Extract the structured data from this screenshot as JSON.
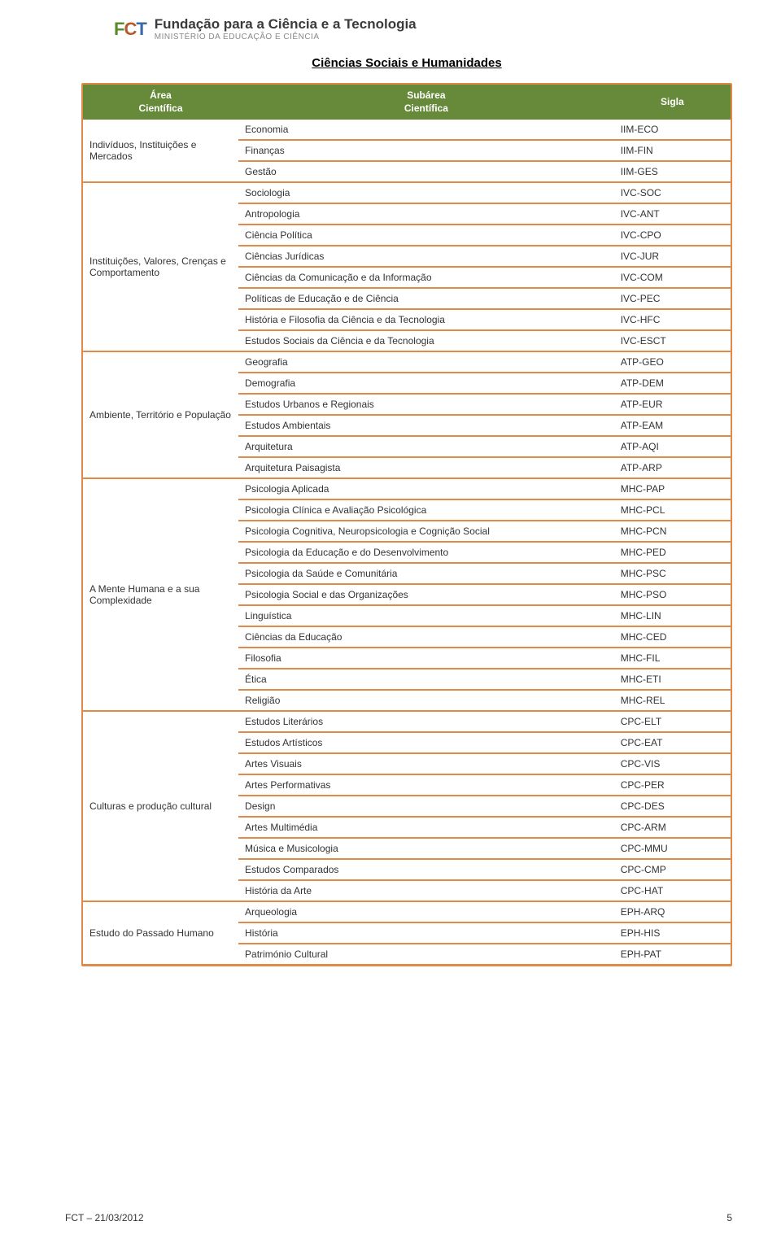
{
  "colors": {
    "header_bg": "#668a3a",
    "header_text": "#ffffff",
    "border": "#e08a4a",
    "text": "#333333",
    "logo_f": "#5a8a2a",
    "logo_c": "#b55a2a",
    "logo_t": "#3a6aa8",
    "logo_sub": "#888888"
  },
  "brand": {
    "logo": "FCT",
    "main": "Fundação para a Ciência e a Tecnologia",
    "sub": "MINISTÉRIO DA EDUCAÇÃO E CIÊNCIA"
  },
  "section_title": "Ciências Sociais e Humanidades",
  "table": {
    "headers": {
      "area": "Área\nCientífica",
      "sub": "Subárea\nCientífica",
      "sig": "Sigla"
    },
    "col_widths": [
      "24%",
      "58%",
      "18%"
    ],
    "groups": [
      {
        "area": "Indivíduos, Instituições e Mercados",
        "rows": [
          [
            "Economia",
            "IIM-ECO"
          ],
          [
            "Finanças",
            "IIM-FIN"
          ],
          [
            "Gestão",
            "IIM-GES"
          ]
        ]
      },
      {
        "area": "Instituições, Valores, Crenças e Comportamento",
        "rows": [
          [
            "Sociologia",
            "IVC-SOC"
          ],
          [
            "Antropologia",
            "IVC-ANT"
          ],
          [
            "Ciência Política",
            "IVC-CPO"
          ],
          [
            "Ciências Jurídicas",
            "IVC-JUR"
          ],
          [
            "Ciências da Comunicação e da Informação",
            "IVC-COM"
          ],
          [
            "Políticas de Educação e de Ciência",
            "IVC-PEC"
          ],
          [
            "História e Filosofia da Ciência e da Tecnologia",
            "IVC-HFC"
          ],
          [
            "Estudos Sociais da Ciência e da Tecnologia",
            "IVC-ESCT"
          ]
        ]
      },
      {
        "area": "Ambiente, Território e População",
        "rows": [
          [
            "Geografia",
            "ATP-GEO"
          ],
          [
            "Demografia",
            "ATP-DEM"
          ],
          [
            "Estudos Urbanos e Regionais",
            "ATP-EUR"
          ],
          [
            "Estudos Ambientais",
            "ATP-EAM"
          ],
          [
            "Arquitetura",
            "ATP-AQI"
          ],
          [
            "Arquitetura Paisagista",
            "ATP-ARP"
          ]
        ]
      },
      {
        "area": "A Mente Humana e a sua Complexidade",
        "rows": [
          [
            "Psicologia Aplicada",
            "MHC-PAP"
          ],
          [
            "Psicologia Clínica e Avaliação Psicológica",
            "MHC-PCL"
          ],
          [
            "Psicologia Cognitiva, Neuropsicologia e Cognição Social",
            "MHC-PCN"
          ],
          [
            "Psicologia da Educação e do Desenvolvimento",
            "MHC-PED"
          ],
          [
            "Psicologia da Saúde e Comunitária",
            "MHC-PSC"
          ],
          [
            "Psicologia Social e das Organizações",
            "MHC-PSO"
          ],
          [
            "Linguística",
            "MHC-LIN"
          ],
          [
            "Ciências da Educação",
            "MHC-CED"
          ],
          [
            "Filosofia",
            "MHC-FIL"
          ],
          [
            "Ética",
            "MHC-ETI"
          ],
          [
            "Religião",
            "MHC-REL"
          ]
        ]
      },
      {
        "area": "Culturas e produção cultural",
        "rows": [
          [
            "Estudos Literários",
            "CPC-ELT"
          ],
          [
            "Estudos Artísticos",
            "CPC-EAT"
          ],
          [
            "Artes Visuais",
            "CPC-VIS"
          ],
          [
            "Artes Performativas",
            "CPC-PER"
          ],
          [
            "Design",
            "CPC-DES"
          ],
          [
            "Artes Multimédia",
            "CPC-ARM"
          ],
          [
            "Música e Musicologia",
            "CPC-MMU"
          ],
          [
            "Estudos Comparados",
            "CPC-CMP"
          ],
          [
            "História da Arte",
            "CPC-HAT"
          ]
        ]
      },
      {
        "area": "Estudo do Passado Humano",
        "rows": [
          [
            "Arqueologia",
            "EPH-ARQ"
          ],
          [
            "História",
            "EPH-HIS"
          ],
          [
            "Património Cultural",
            "EPH-PAT"
          ]
        ]
      }
    ]
  },
  "footer": {
    "left": "FCT – 21/03/2012",
    "page_number": "5"
  }
}
